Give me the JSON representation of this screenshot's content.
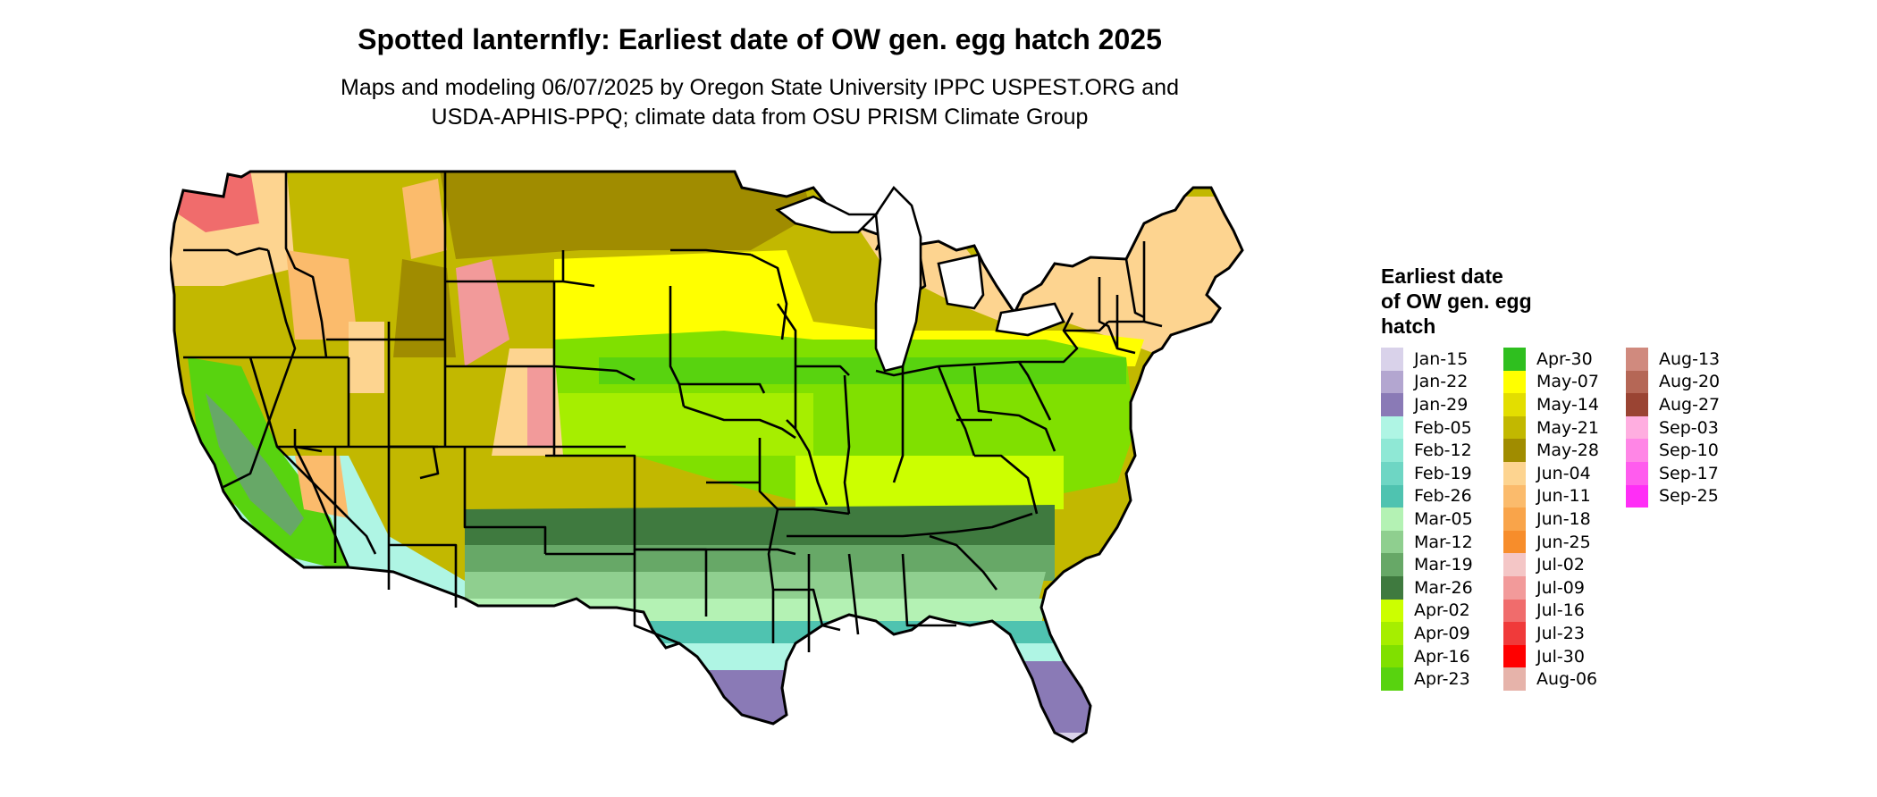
{
  "title": "Spotted lanternfly: Earliest date of OW gen. egg hatch 2025",
  "subtitle": {
    "line1": "Maps and modeling 06/07/2025 by Oregon State University IPPC USPEST.ORG and",
    "line2": "USDA-APHIS-PPQ; climate data from OSU PRISM Climate Group"
  },
  "legend": {
    "title_lines": [
      "Earliest date",
      "of OW gen. egg",
      "hatch"
    ],
    "columns": [
      [
        {
          "label": "Jan-15",
          "color": "#d9d2ea"
        },
        {
          "label": "Jan-22",
          "color": "#b3a6d0"
        },
        {
          "label": "Jan-29",
          "color": "#8a7ab6"
        },
        {
          "label": "Feb-05",
          "color": "#aff5e4"
        },
        {
          "label": "Feb-12",
          "color": "#8fe8d5"
        },
        {
          "label": "Feb-19",
          "color": "#6ed6c4"
        },
        {
          "label": "Feb-26",
          "color": "#4fc3b0"
        },
        {
          "label": "Mar-05",
          "color": "#b4f2b4"
        },
        {
          "label": "Mar-12",
          "color": "#8fcf8f"
        },
        {
          "label": "Mar-19",
          "color": "#67a867"
        },
        {
          "label": "Mar-26",
          "color": "#3f7a3f"
        },
        {
          "label": "Apr-02",
          "color": "#ccff00"
        },
        {
          "label": "Apr-09",
          "color": "#a6ee00"
        },
        {
          "label": "Apr-16",
          "color": "#80e000"
        },
        {
          "label": "Apr-23",
          "color": "#58d30f"
        }
      ],
      [
        {
          "label": "Apr-30",
          "color": "#2fbf1f"
        },
        {
          "label": "May-07",
          "color": "#ffff00"
        },
        {
          "label": "May-14",
          "color": "#e3de00"
        },
        {
          "label": "May-21",
          "color": "#c2b800"
        },
        {
          "label": "May-28",
          "color": "#a08c00"
        },
        {
          "label": "Jun-04",
          "color": "#fdd490"
        },
        {
          "label": "Jun-11",
          "color": "#fbbb6c"
        },
        {
          "label": "Jun-18",
          "color": "#f9a44a"
        },
        {
          "label": "Jun-25",
          "color": "#f78d2b"
        },
        {
          "label": "Jul-02",
          "color": "#f4c6c6"
        },
        {
          "label": "Jul-09",
          "color": "#f29a9a"
        },
        {
          "label": "Jul-16",
          "color": "#f06c6c"
        },
        {
          "label": "Jul-23",
          "color": "#f03a3a"
        },
        {
          "label": "Jul-30",
          "color": "#ff0000"
        },
        {
          "label": "Aug-06",
          "color": "#e6b3aa"
        }
      ],
      [
        {
          "label": "Aug-13",
          "color": "#d08a7e"
        },
        {
          "label": "Aug-20",
          "color": "#b56756"
        },
        {
          "label": "Aug-27",
          "color": "#9a4433"
        },
        {
          "label": "Sep-03",
          "color": "#ffaee0"
        },
        {
          "label": "Sep-10",
          "color": "#ff86e6"
        },
        {
          "label": "Sep-17",
          "color": "#ff5cee"
        },
        {
          "label": "Sep-25",
          "color": "#ff2ef6"
        }
      ]
    ]
  }
}
